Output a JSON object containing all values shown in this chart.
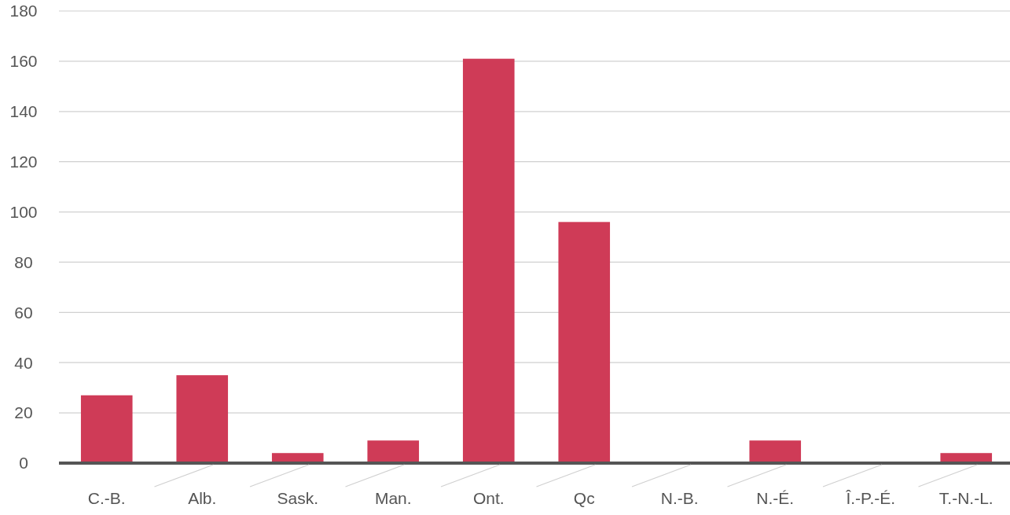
{
  "chart_data": {
    "type": "bar",
    "categories": [
      "C.-B.",
      "Alb.",
      "Sask.",
      "Man.",
      "Ont.",
      "Qc",
      "N.-B.",
      "N.-É.",
      "Î.-P.-É.",
      "T.-N.-L."
    ],
    "values": [
      27,
      35,
      4,
      9,
      161,
      96,
      0,
      9,
      0,
      4
    ],
    "color": "#cf3b57",
    "ylim": [
      0,
      180
    ],
    "yticks": [
      0,
      20,
      40,
      60,
      80,
      100,
      120,
      140,
      160,
      180
    ],
    "grid": "y"
  }
}
